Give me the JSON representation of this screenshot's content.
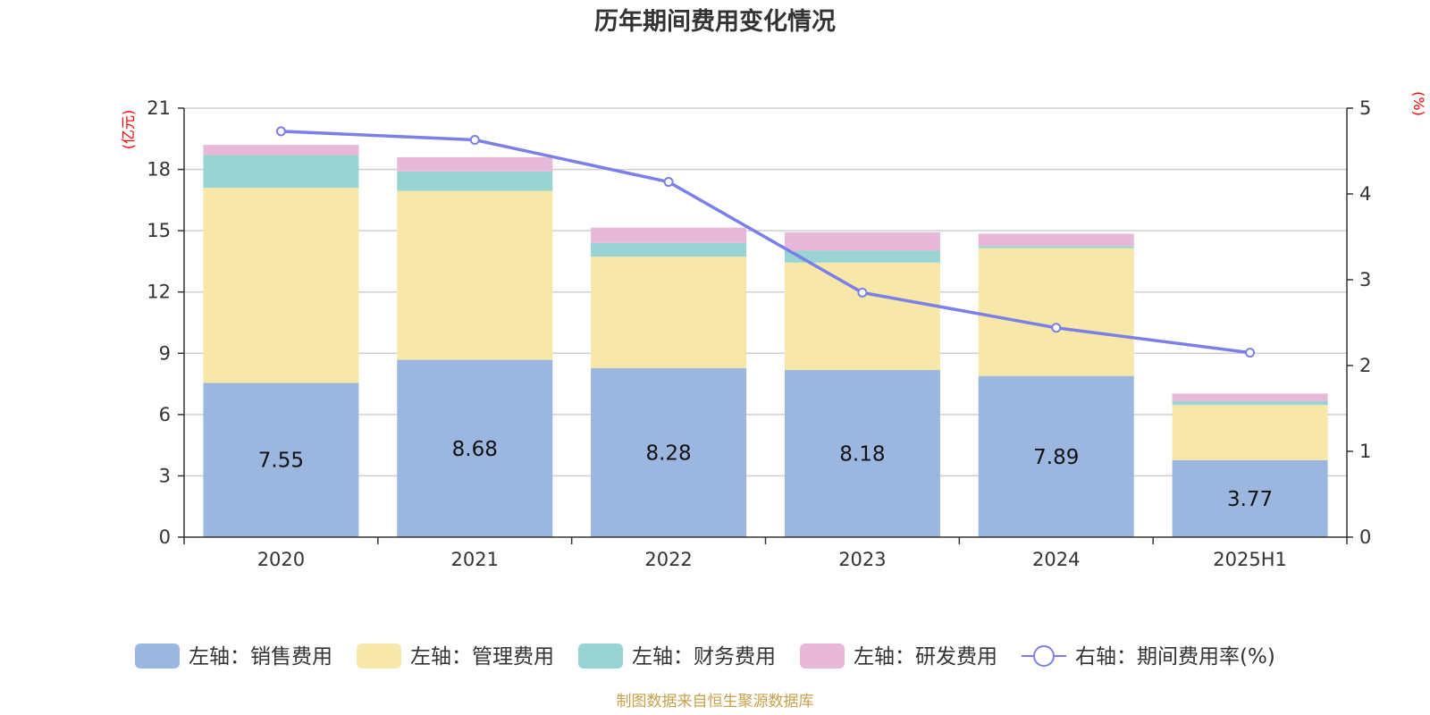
{
  "chart_data": {
    "type": "bar",
    "stacked": true,
    "title": "历年期间费用变化情况",
    "categories": [
      "2020",
      "2021",
      "2022",
      "2023",
      "2024",
      "2025H1"
    ],
    "left_axis": {
      "unit": "(亿元)",
      "ylim": [
        0,
        21
      ],
      "ticks": [
        "0",
        "3",
        "6",
        "9",
        "12",
        "15",
        "18",
        "21"
      ]
    },
    "right_axis": {
      "unit": "(%)",
      "ylim": [
        0,
        5
      ],
      "ticks": [
        "0",
        "1",
        "2",
        "3",
        "4",
        "5"
      ]
    },
    "series": [
      {
        "name": "左轴：销售费用",
        "type": "bar",
        "axis": "left",
        "color": "#9bb7e0",
        "values": [
          7.55,
          8.68,
          8.28,
          8.18,
          7.89,
          3.77
        ],
        "labels": [
          "7.55",
          "8.68",
          "8.28",
          "8.18",
          "7.89",
          "3.77"
        ]
      },
      {
        "name": "左轴：管理费用",
        "type": "bar",
        "axis": "left",
        "color": "#f7e7a8",
        "values": [
          9.55,
          8.27,
          5.45,
          5.26,
          6.26,
          2.7
        ]
      },
      {
        "name": "左轴：财务费用",
        "type": "bar",
        "axis": "left",
        "color": "#98d4d4",
        "values": [
          1.6,
          0.95,
          0.67,
          0.58,
          0.1,
          0.18
        ]
      },
      {
        "name": "左轴：研发费用",
        "type": "bar",
        "axis": "left",
        "color": "#e8b8d8",
        "values": [
          0.5,
          0.7,
          0.75,
          0.9,
          0.6,
          0.38
        ]
      },
      {
        "name": "右轴：期间费用率(%)",
        "type": "line",
        "axis": "right",
        "color": "#7b7fe8",
        "values": [
          4.73,
          4.63,
          4.14,
          2.85,
          2.44,
          2.15
        ]
      }
    ],
    "grid": true,
    "legend_position": "bottom"
  },
  "source_text": "制图数据来自恒生聚源数据库"
}
